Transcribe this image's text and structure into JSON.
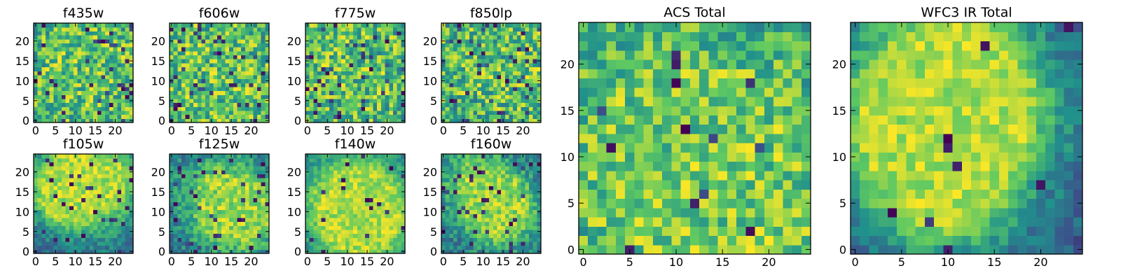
{
  "figure": {
    "colormap": "viridis",
    "colormap_stops": [
      "#440154",
      "#3b528b",
      "#21918c",
      "#5ec962",
      "#fde725"
    ]
  },
  "chart_data": [
    {
      "type": "heatmap",
      "title": "f435w",
      "xlabel": "",
      "ylabel": "",
      "grid_size": 25,
      "x_ticks": [
        0,
        5,
        10,
        15,
        20
      ],
      "y_ticks": [
        0,
        5,
        10,
        15,
        20
      ],
      "xlim": [
        0,
        24
      ],
      "ylim": [
        0,
        24
      ],
      "seed": 11,
      "blob": 0.05,
      "noise": 0.95,
      "dark_spots": 0.06,
      "bias": 0.05
    },
    {
      "type": "heatmap",
      "title": "f606w",
      "xlabel": "",
      "ylabel": "",
      "grid_size": 25,
      "x_ticks": [
        0,
        5,
        10,
        15,
        20
      ],
      "y_ticks": [
        0,
        5,
        10,
        15,
        20
      ],
      "xlim": [
        0,
        24
      ],
      "ylim": [
        0,
        24
      ],
      "seed": 23,
      "blob": 0.05,
      "noise": 0.95,
      "dark_spots": 0.06,
      "bias": 0.04
    },
    {
      "type": "heatmap",
      "title": "f775w",
      "xlabel": "",
      "ylabel": "",
      "grid_size": 25,
      "x_ticks": [
        0,
        5,
        10,
        15,
        20
      ],
      "y_ticks": [
        0,
        5,
        10,
        15,
        20
      ],
      "xlim": [
        0,
        24
      ],
      "ylim": [
        0,
        24
      ],
      "seed": 37,
      "blob": 0.05,
      "noise": 0.95,
      "dark_spots": 0.06,
      "bias": 0.0
    },
    {
      "type": "heatmap",
      "title": "f850lp",
      "xlabel": "",
      "ylabel": "",
      "grid_size": 25,
      "x_ticks": [
        0,
        5,
        10,
        15,
        20
      ],
      "y_ticks": [
        0,
        5,
        10,
        15,
        20
      ],
      "xlim": [
        0,
        24
      ],
      "ylim": [
        0,
        24
      ],
      "seed": 41,
      "blob": 0.05,
      "noise": 0.95,
      "dark_spots": 0.07,
      "bias": -0.02
    },
    {
      "type": "heatmap",
      "title": "f105w",
      "xlabel": "",
      "ylabel": "",
      "grid_size": 25,
      "x_ticks": [
        0,
        5,
        10,
        15,
        20
      ],
      "y_ticks": [
        0,
        5,
        10,
        15,
        20
      ],
      "xlim": [
        0,
        24
      ],
      "ylim": [
        0,
        24
      ],
      "seed": 53,
      "blob": 0.55,
      "noise": 0.5,
      "dark_spots": 0.04,
      "bias": 0.05
    },
    {
      "type": "heatmap",
      "title": "f125w",
      "xlabel": "",
      "ylabel": "",
      "grid_size": 25,
      "x_ticks": [
        0,
        5,
        10,
        15,
        20
      ],
      "y_ticks": [
        0,
        5,
        10,
        15,
        20
      ],
      "xlim": [
        0,
        24
      ],
      "ylim": [
        0,
        24
      ],
      "seed": 67,
      "blob": 0.45,
      "noise": 0.6,
      "dark_spots": 0.05,
      "bias": 0.0
    },
    {
      "type": "heatmap",
      "title": "f140w",
      "xlabel": "",
      "ylabel": "",
      "grid_size": 25,
      "x_ticks": [
        0,
        5,
        10,
        15,
        20
      ],
      "y_ticks": [
        0,
        5,
        10,
        15,
        20
      ],
      "xlim": [
        0,
        24
      ],
      "ylim": [
        0,
        24
      ],
      "seed": 71,
      "blob": 0.55,
      "noise": 0.5,
      "dark_spots": 0.03,
      "bias": 0.08
    },
    {
      "type": "heatmap",
      "title": "f160w",
      "xlabel": "",
      "ylabel": "",
      "grid_size": 25,
      "x_ticks": [
        0,
        5,
        10,
        15,
        20
      ],
      "y_ticks": [
        0,
        5,
        10,
        15,
        20
      ],
      "xlim": [
        0,
        24
      ],
      "ylim": [
        0,
        24
      ],
      "seed": 83,
      "blob": 0.45,
      "noise": 0.6,
      "dark_spots": 0.05,
      "bias": 0.0
    },
    {
      "type": "heatmap",
      "title": "ACS Total",
      "xlabel": "",
      "ylabel": "",
      "grid_size": 25,
      "x_ticks": [
        0,
        5,
        10,
        15,
        20
      ],
      "y_ticks": [
        0,
        5,
        10,
        15,
        20
      ],
      "xlim": [
        0,
        24
      ],
      "ylim": [
        0,
        24
      ],
      "seed": 97,
      "blob": 0.15,
      "noise": 0.85,
      "dark_spots": 0.025,
      "bias": 0.08
    },
    {
      "type": "heatmap",
      "title": "WFC3 IR Total",
      "xlabel": "",
      "ylabel": "",
      "grid_size": 25,
      "x_ticks": [
        0,
        5,
        10,
        15,
        20
      ],
      "y_ticks": [
        0,
        5,
        10,
        15,
        20
      ],
      "xlim": [
        0,
        24
      ],
      "ylim": [
        0,
        24
      ],
      "seed": 101,
      "blob": 0.6,
      "noise": 0.45,
      "dark_spots": 0.015,
      "bias": 0.05
    }
  ]
}
